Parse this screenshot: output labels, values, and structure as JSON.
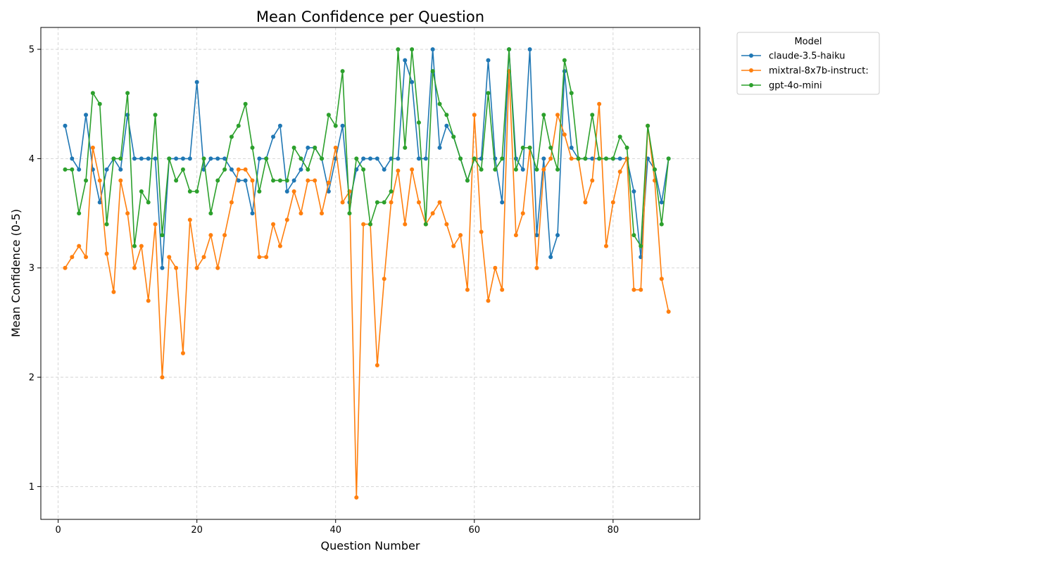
{
  "chart_data": {
    "type": "line",
    "title": "Mean Confidence per Question",
    "xlabel": "Question Number",
    "ylabel": "Mean Confidence (0-5)",
    "xlim": [
      -2.5,
      92.5
    ],
    "ylim": [
      0.7,
      5.2
    ],
    "xticks": [
      0,
      20,
      40,
      60,
      80
    ],
    "yticks": [
      1,
      2,
      3,
      4,
      5
    ],
    "grid": true,
    "legend_title": "Model",
    "legend_position": "outside-top-right",
    "x": [
      1,
      2,
      3,
      4,
      5,
      6,
      7,
      8,
      9,
      10,
      11,
      12,
      13,
      14,
      15,
      16,
      17,
      18,
      19,
      20,
      21,
      22,
      23,
      24,
      25,
      26,
      27,
      28,
      29,
      30,
      31,
      32,
      33,
      34,
      35,
      36,
      37,
      38,
      39,
      40,
      41,
      42,
      43,
      44,
      45,
      46,
      47,
      48,
      49,
      50,
      51,
      52,
      53,
      54,
      55,
      56,
      57,
      58,
      59,
      60,
      61,
      62,
      63,
      64,
      65,
      66,
      67,
      68,
      69,
      70,
      71,
      72,
      73,
      74,
      75,
      76,
      77,
      78,
      79,
      80,
      81,
      82,
      83,
      84,
      85,
      86,
      87,
      88
    ],
    "series": [
      {
        "name": "claude-3.5-haiku",
        "color": "#1f77b4",
        "values": [
          4.3,
          4.0,
          3.9,
          4.4,
          3.9,
          3.6,
          3.9,
          4.0,
          3.9,
          4.4,
          4.0,
          4.0,
          4.0,
          4.0,
          3.0,
          4.0,
          4.0,
          4.0,
          4.0,
          4.7,
          3.9,
          4.0,
          4.0,
          4.0,
          3.9,
          3.8,
          3.8,
          3.5,
          4.0,
          4.0,
          4.2,
          4.3,
          3.7,
          3.8,
          3.9,
          4.1,
          4.1,
          4.0,
          3.7,
          4.0,
          4.3,
          3.6,
          3.9,
          4.0,
          4.0,
          4.0,
          3.9,
          4.0,
          4.0,
          4.9,
          4.7,
          4.0,
          4.0,
          5.0,
          4.1,
          4.3,
          4.2,
          4.0,
          3.8,
          4.0,
          4.0,
          4.9,
          4.0,
          3.6,
          5.0,
          4.0,
          3.9,
          5.0,
          3.3,
          4.0,
          3.1,
          3.3,
          4.8,
          4.1,
          4.0,
          4.0,
          4.0,
          4.0,
          4.0,
          4.0,
          4.0,
          4.0,
          3.7,
          3.1,
          4.0,
          3.9,
          3.6,
          4.0
        ]
      },
      {
        "name": "mixtral-8x7b-instruct:",
        "color": "#ff7f0e",
        "values": [
          3.0,
          3.1,
          3.2,
          3.1,
          4.1,
          3.8,
          3.13,
          2.78,
          3.8,
          3.5,
          3.0,
          3.2,
          2.7,
          3.4,
          2.0,
          3.1,
          3.0,
          2.22,
          3.44,
          3.0,
          3.1,
          3.3,
          3.0,
          3.3,
          3.6,
          3.9,
          3.9,
          3.8,
          3.1,
          3.1,
          3.4,
          3.2,
          3.44,
          3.7,
          3.5,
          3.8,
          3.8,
          3.5,
          3.78,
          4.1,
          3.6,
          3.7,
          0.9,
          3.4,
          3.4,
          2.11,
          2.9,
          3.6,
          3.89,
          3.4,
          3.9,
          3.6,
          3.4,
          3.5,
          3.6,
          3.4,
          3.2,
          3.3,
          2.8,
          4.4,
          3.33,
          2.7,
          3.0,
          2.8,
          4.8,
          3.3,
          3.5,
          4.1,
          3.0,
          3.9,
          4.0,
          4.4,
          4.22,
          4.0,
          4.0,
          3.6,
          3.8,
          4.5,
          3.2,
          3.6,
          3.88,
          4.0,
          2.8,
          2.8,
          4.3,
          3.8,
          2.9,
          2.6
        ]
      },
      {
        "name": "gpt-4o-mini",
        "color": "#2ca02c",
        "values": [
          3.9,
          3.9,
          3.5,
          3.8,
          4.6,
          4.5,
          3.4,
          4.0,
          4.0,
          4.6,
          3.2,
          3.7,
          3.6,
          4.4,
          3.3,
          4.0,
          3.8,
          3.9,
          3.7,
          3.7,
          4.0,
          3.5,
          3.8,
          3.9,
          4.2,
          4.3,
          4.5,
          4.1,
          3.7,
          4.0,
          3.8,
          3.8,
          3.8,
          4.1,
          4.0,
          3.9,
          4.1,
          4.0,
          4.4,
          4.3,
          4.8,
          3.5,
          4.0,
          3.9,
          3.4,
          3.6,
          3.6,
          3.7,
          5.0,
          4.1,
          5.0,
          4.33,
          3.4,
          4.8,
          4.5,
          4.4,
          4.2,
          4.0,
          3.8,
          4.0,
          3.9,
          4.6,
          3.9,
          4.0,
          5.0,
          3.9,
          4.1,
          4.1,
          3.9,
          4.4,
          4.1,
          3.9,
          4.9,
          4.6,
          4.0,
          4.0,
          4.4,
          4.0,
          4.0,
          4.0,
          4.2,
          4.1,
          3.3,
          3.2,
          4.3,
          3.9,
          3.4,
          4.0
        ]
      }
    ]
  }
}
